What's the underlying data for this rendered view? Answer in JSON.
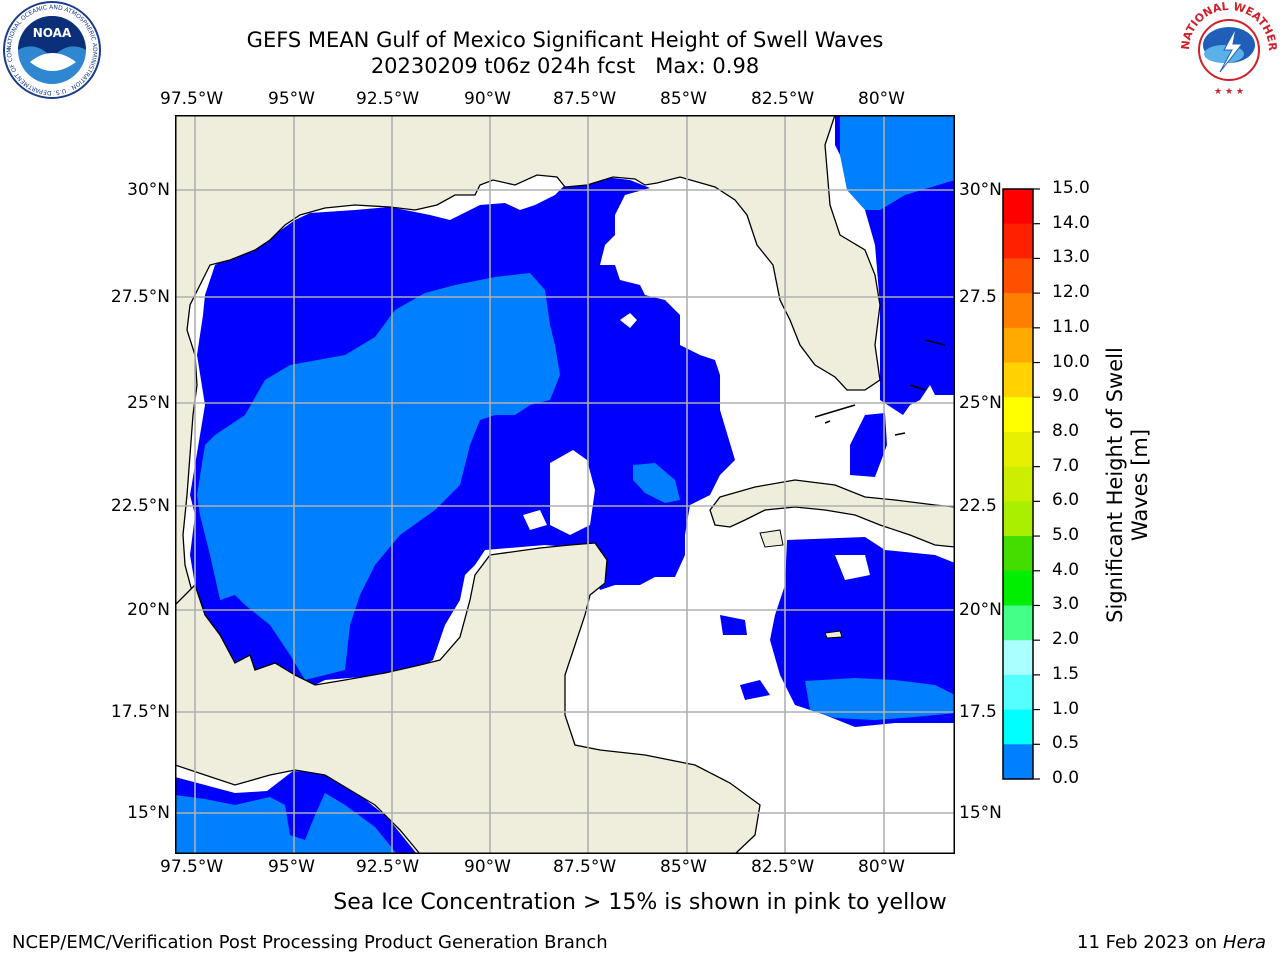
{
  "header": {
    "title_line1": "GEFS MEAN Gulf of Mexico Significant Height of Swell Waves",
    "title_line2": "20230209 t06z 024h fcst",
    "max_label": "Max: 0.98"
  },
  "map": {
    "lon_labels": [
      "97.5°W",
      "95°W",
      "92.5°W",
      "90°W",
      "87.5°W",
      "85°W",
      "82.5°W",
      "80°W"
    ],
    "lat_labels_left": [
      "30°N",
      "27.5°N",
      "25°N",
      "22.5°N",
      "20°N",
      "17.5°N",
      "15°N"
    ],
    "lat_labels_right": [
      "30°N",
      "27.5",
      "25°N",
      "22.5",
      "20°N",
      "17.5",
      "15°N"
    ],
    "colors": {
      "land": "#efeedd",
      "wave_0_0_5": "#0000ff",
      "wave_0_5_1": "#0080ff",
      "no_data": "#ffffff",
      "grid": "#b0b0b0"
    }
  },
  "colorbar": {
    "label": "Significant Height of Swell Waves [m]",
    "ticks": [
      "15.0",
      "14.0",
      "13.0",
      "12.0",
      "11.0",
      "10.0",
      "9.0",
      "8.0",
      "7.0",
      "6.0",
      "5.0",
      "4.0",
      "3.0",
      "2.0",
      "1.5",
      "1.0",
      "0.5",
      "0.0"
    ],
    "colors": [
      "#ff0000",
      "#ff2000",
      "#ff5000",
      "#ff8000",
      "#ffaa00",
      "#ffd200",
      "#ffff00",
      "#e6f000",
      "#ccee00",
      "#aaee00",
      "#44dd00",
      "#00ee00",
      "#44ff88",
      "#aaffff",
      "#55ffff",
      "#00ffff",
      "#0080ff",
      "#0000ff"
    ]
  },
  "annotations": {
    "sea_ice_note": "Sea Ice Concentration > 15% is shown in pink to yellow"
  },
  "footer": {
    "left": "NCEP/EMC/Verification Post Processing Product Generation Branch",
    "date": "11 Feb 2023 on",
    "machine": "Hera"
  },
  "logos": {
    "noaa_text": "NOAA",
    "noaa_ring_text": "NATIONAL OCEANIC AND ATMOSPHERIC ADMINISTRATION · U.S. DEPARTMENT OF COMMERCE",
    "nws_ring_text": "NATIONAL WEATHER SERVICE"
  }
}
